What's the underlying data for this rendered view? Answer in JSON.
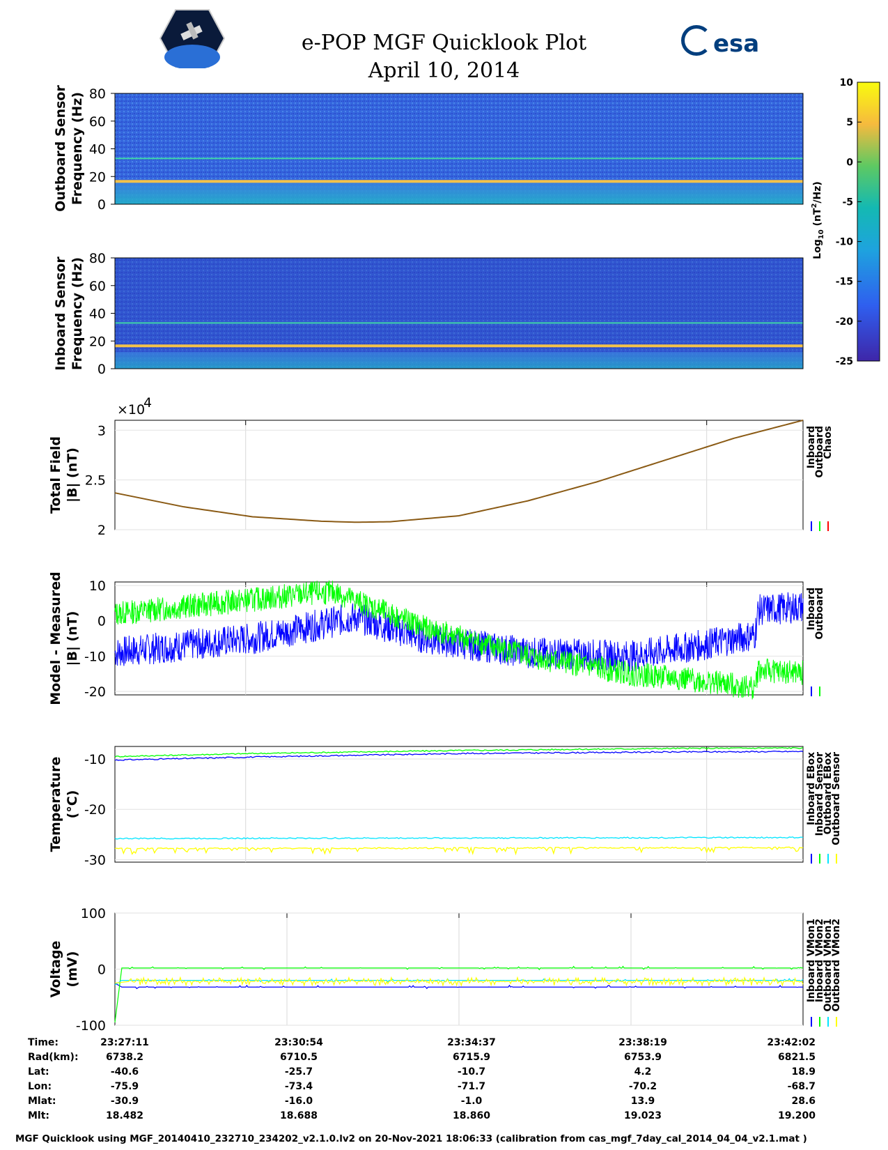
{
  "title_line1": "e-POP MGF Quicklook Plot",
  "title_line2": "April 10, 2014",
  "logo_text": "esa",
  "colors": {
    "inboard": "#0000ff",
    "outboard": "#00ff00",
    "chaos": "#ff0000",
    "cyan": "#00e5ff",
    "yellow": "#ffff00",
    "spec_bg": "#2f5fdc"
  },
  "chart_data": [
    {
      "type": "heatmap",
      "name": "outboard-spectrogram",
      "ylabel": [
        "Outboard Sensor",
        "Frequency (Hz)"
      ],
      "yticks": [
        "80",
        "60",
        "40",
        "20",
        "0"
      ],
      "ylim": [
        0,
        80
      ],
      "lines_hz": [
        33,
        16.5
      ]
    },
    {
      "type": "heatmap",
      "name": "inboard-spectrogram",
      "ylabel": [
        "Inboard Sensor",
        "Frequency (Hz)"
      ],
      "yticks": [
        "80",
        "60",
        "40",
        "20",
        "0"
      ],
      "ylim": [
        0,
        80
      ],
      "lines_hz": [
        33,
        16.5
      ]
    },
    {
      "type": "line",
      "name": "total-field",
      "ylabel": [
        "Total Field",
        "|B| (nT)"
      ],
      "yticks": [
        "3",
        "2.5",
        "2"
      ],
      "ylim": [
        2.0,
        3.1
      ],
      "multiplier": "×10",
      "exponent": "4",
      "legend": [
        "Inboard",
        "Outboard",
        "Chaos"
      ],
      "x": [
        0,
        0.1,
        0.2,
        0.3,
        0.35,
        0.4,
        0.5,
        0.6,
        0.7,
        0.8,
        0.9,
        1.0
      ],
      "values": [
        2.37,
        2.23,
        2.13,
        2.085,
        2.075,
        2.08,
        2.14,
        2.29,
        2.48,
        2.7,
        2.92,
        3.1
      ]
    },
    {
      "type": "line",
      "name": "model-measured",
      "ylabel": [
        "Model - Measured",
        "|B| (nT)"
      ],
      "yticks": [
        "10",
        "0",
        "-10",
        "-20"
      ],
      "ylim": [
        -21,
        11
      ],
      "legend": [
        "Inboard",
        "Outboard"
      ],
      "series": [
        {
          "name": "Inboard",
          "x": [
            0,
            0.1,
            0.2,
            0.3,
            0.35,
            0.45,
            0.6,
            0.75,
            0.85,
            0.93,
            0.935,
            1.0
          ],
          "values": [
            -9,
            -7,
            -5,
            -1,
            1,
            -5,
            -9,
            -10,
            -7,
            -4,
            3,
            4
          ]
        },
        {
          "name": "Outboard",
          "x": [
            0,
            0.1,
            0.2,
            0.3,
            0.32,
            0.45,
            0.6,
            0.75,
            0.85,
            0.93,
            0.935,
            1.0
          ],
          "values": [
            2,
            4,
            6,
            8,
            8,
            -2,
            -10,
            -15,
            -17,
            -19,
            -14,
            -15
          ]
        }
      ]
    },
    {
      "type": "line",
      "name": "temperature",
      "ylabel": [
        "Temperature",
        "(°C)"
      ],
      "yticks": [
        "-10",
        "-20",
        "-30"
      ],
      "ylim": [
        -30.5,
        -7.5
      ],
      "legend": [
        "Inboard EBox",
        "Inboard Sensor",
        "Outboard EBox",
        "Outboard Sensor"
      ],
      "series": [
        {
          "name": "Inboard EBox",
          "x": [
            0,
            0.2,
            0.5,
            0.8,
            1.0
          ],
          "values": [
            -10.2,
            -9.6,
            -8.9,
            -8.6,
            -8.5
          ]
        },
        {
          "name": "Inboard Sensor",
          "x": [
            0,
            0.2,
            0.5,
            0.8,
            1.0
          ],
          "values": [
            -9.5,
            -8.9,
            -8.3,
            -7.9,
            -7.8
          ]
        },
        {
          "name": "Outboard EBox",
          "x": [
            0,
            1.0
          ],
          "values": [
            -25.8,
            -25.6
          ]
        },
        {
          "name": "Outboard Sensor",
          "x": [
            0,
            1.0
          ],
          "values": [
            -27.8,
            -27.6
          ]
        }
      ]
    },
    {
      "type": "line",
      "name": "voltage",
      "ylabel": [
        "Voltage",
        "(mV)"
      ],
      "yticks": [
        "100",
        "0",
        "-100"
      ],
      "ylim": [
        -100,
        100
      ],
      "legend": [
        "Inboard VMon1",
        "Inboard VMon2",
        "Outboard VMon1",
        "Outboard VMon2"
      ],
      "series": [
        {
          "name": "Inboard VMon1",
          "x": [
            0,
            0.01,
            1.0
          ],
          "values": [
            -25,
            -32,
            -32
          ]
        },
        {
          "name": "Inboard VMon2",
          "x": [
            0,
            0.01,
            1.0
          ],
          "values": [
            -95,
            2,
            2
          ]
        },
        {
          "name": "Outboard VMon1",
          "x": [
            0,
            0.01,
            1.0
          ],
          "values": [
            -28,
            -20,
            -20
          ]
        },
        {
          "name": "Outboard VMon2",
          "x": [
            0,
            0.02,
            1.0
          ],
          "values": [
            -25,
            -22,
            -22
          ]
        }
      ]
    }
  ],
  "colorbar": {
    "ticks": [
      "10",
      "5",
      "0",
      "-5",
      "-10",
      "-15",
      "-20",
      "-25"
    ],
    "label": "Log",
    "label_sub": "10",
    "label_rest": " (nT",
    "label_sup": "2",
    "label_end": "/Hz)"
  },
  "info_table": {
    "row_labels": [
      "Time:",
      "Rad(km):",
      "Lat:",
      "Lon:",
      "Mlat:",
      "Mlt:"
    ],
    "columns": [
      [
        "23:27:11",
        "6738.2",
        "-40.6",
        "-75.9",
        "-30.9",
        "18.482"
      ],
      [
        "23:30:54",
        "6710.5",
        "-25.7",
        "-73.4",
        "-16.0",
        "18.688"
      ],
      [
        "23:34:37",
        "6715.9",
        "-10.7",
        "-71.7",
        "-1.0",
        "18.860"
      ],
      [
        "23:38:19",
        "6753.9",
        "4.2",
        "-70.2",
        "13.9",
        "19.023"
      ],
      [
        "23:42:02",
        "6821.5",
        "18.9",
        "-68.7",
        "28.6",
        "19.200"
      ]
    ]
  },
  "footer": "MGF Quicklook using MGF_20140410_232710_234202_v2.1.0.lv2 on 20-Nov-2021 18:06:33 (calibration from cas_mgf_7day_cal_2014_04_04_v2.1.mat )"
}
